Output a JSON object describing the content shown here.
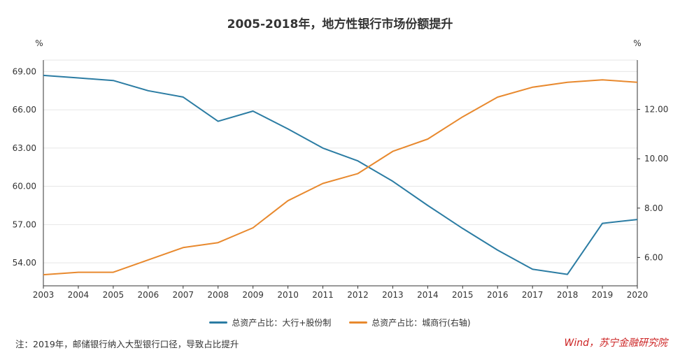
{
  "chart_data": {
    "type": "line",
    "title": "2005-2018年，地方性银行市场份额提升",
    "left_unit": "%",
    "right_unit": "%",
    "x": [
      "2003",
      "2004",
      "2005",
      "2006",
      "2007",
      "2008",
      "2009",
      "2010",
      "2011",
      "2012",
      "2013",
      "2014",
      "2015",
      "2016",
      "2017",
      "2018",
      "2019",
      "2020"
    ],
    "left_axis": {
      "min": 52.2,
      "max": 69.9,
      "ticks": [
        "54.00",
        "57.00",
        "60.00",
        "63.00",
        "66.00",
        "69.00"
      ]
    },
    "right_axis": {
      "min": 4.85,
      "max": 14.0,
      "ticks": [
        "6.00",
        "8.00",
        "10.00",
        "12.00"
      ]
    },
    "grid": true,
    "legend_position": "bottom",
    "series": [
      {
        "name": "总资产占比：大行+股份制",
        "axis": "left",
        "color": "#2b7ca3",
        "values": [
          68.7,
          68.5,
          68.3,
          67.5,
          67.0,
          65.1,
          65.9,
          64.5,
          63.0,
          62.0,
          60.4,
          58.5,
          56.7,
          55.0,
          53.5,
          53.1,
          57.1,
          57.4
        ]
      },
      {
        "name": "总资产占比：城商行(右轴)",
        "axis": "right",
        "color": "#e8892e",
        "values": [
          5.3,
          5.4,
          5.4,
          5.9,
          6.4,
          6.6,
          7.2,
          8.3,
          9.0,
          9.4,
          10.3,
          10.8,
          11.7,
          12.5,
          12.9,
          13.1,
          13.2,
          13.1
        ]
      }
    ]
  },
  "footnote": "注：2019年，邮储银行纳入大型银行口径，导致占比提升",
  "source": "Wind，苏宁金融研究院",
  "colors": {
    "source_text": "#cc2222",
    "grid": "#e6e6e6",
    "axis": "#333333"
  }
}
